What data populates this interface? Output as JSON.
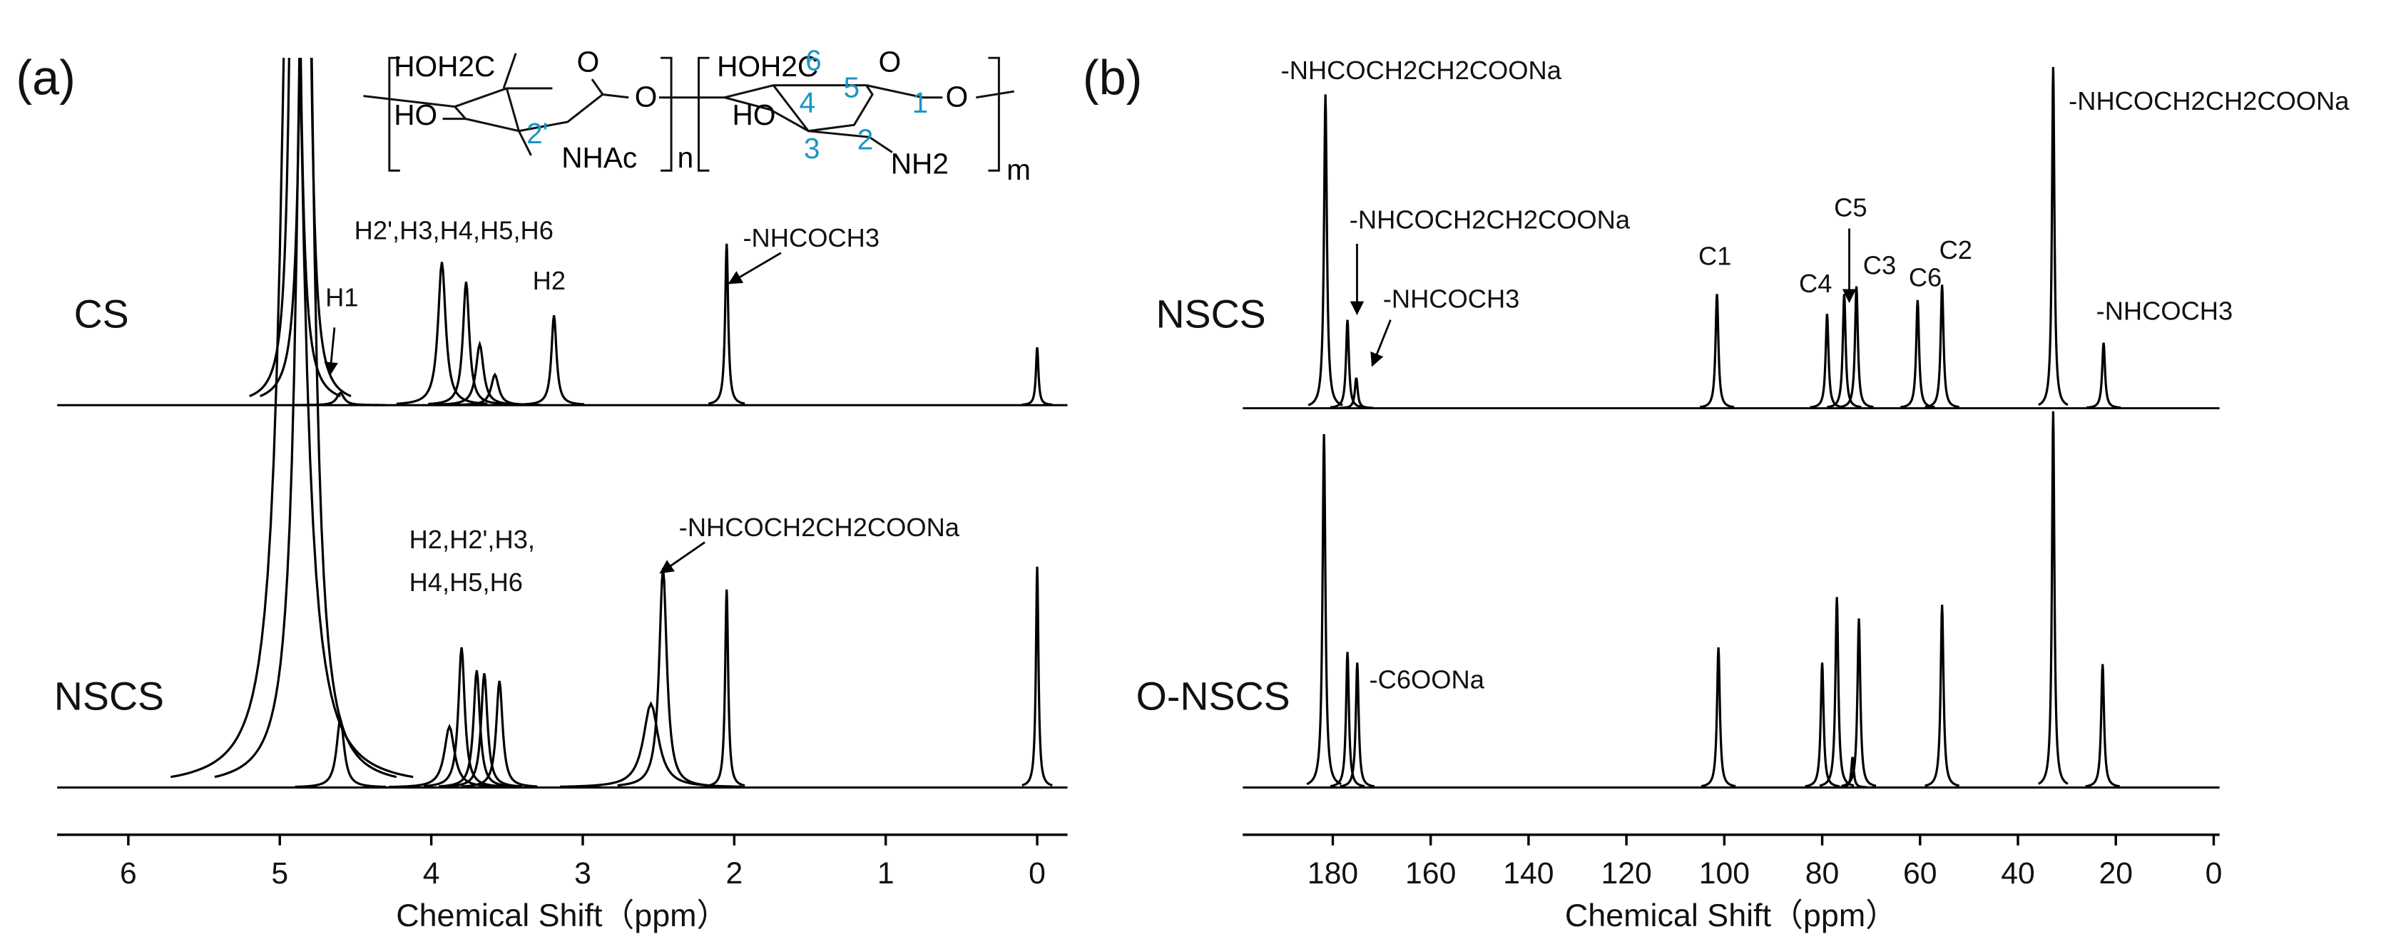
{
  "chart_data": [
    {
      "type": "spectrum",
      "panel_label": "(a)",
      "xlabel": "Chemical Shift（ppm）",
      "xlim": [
        6.47,
        -0.2
      ],
      "xticks": [
        6,
        5,
        4,
        3,
        2,
        1,
        0
      ],
      "series": [
        {
          "name": "CS",
          "color": "#000000",
          "x": [
            4.9,
            4.83,
            4.6,
            3.93,
            3.77,
            3.68,
            3.58,
            3.19,
            2.05,
            0
          ],
          "values": [
            600,
            600,
            8,
            94,
            81,
            40,
            20,
            59,
            106,
            38
          ],
          "linewidths": [
            0.03,
            0.03,
            0.03,
            0.03,
            0.025,
            0.03,
            0.03,
            0.02,
            0.012,
            0.01
          ]
        },
        {
          "name": "NSCS",
          "color": "#000000",
          "x": [
            4.92,
            4.83,
            4.6,
            3.88,
            3.8,
            3.7,
            3.65,
            3.55,
            2.55,
            2.47,
            2.05,
            0
          ],
          "values": [
            700,
            700,
            45,
            40,
            92,
            77,
            75,
            70,
            55,
            144,
            130,
            145
          ],
          "linewidths": [
            0.08,
            0.06,
            0.03,
            0.04,
            0.025,
            0.025,
            0.025,
            0.025,
            0.06,
            0.03,
            0.012,
            0.01
          ]
        }
      ],
      "annotations": [
        "H2',H3,H4,H5,H6",
        "H1",
        "H2",
        "-NHCOCH3",
        "H2,H2',H3,",
        "H4,H5,H6",
        "-NHCOCH2CH2COONa"
      ],
      "structure": [
        {
          "text": "HOH2C",
          "color": "#000000"
        },
        {
          "text": "O",
          "color": "#000000"
        },
        {
          "text": "HO",
          "color": "#000000"
        },
        {
          "text": "2'",
          "color": "#1a96c8"
        },
        {
          "text": "NHAc",
          "color": "#000000"
        },
        {
          "text": "n",
          "color": "#000000"
        },
        {
          "text": "O",
          "color": "#000000"
        },
        {
          "text": "HOH2C",
          "color": "#000000"
        },
        {
          "text": "6",
          "color": "#1a96c8"
        },
        {
          "text": "O",
          "color": "#000000"
        },
        {
          "text": "HO",
          "color": "#000000"
        },
        {
          "text": "4",
          "color": "#1a96c8"
        },
        {
          "text": "5",
          "color": "#1a96c8"
        },
        {
          "text": "1",
          "color": "#1a96c8"
        },
        {
          "text": "3",
          "color": "#1a96c8"
        },
        {
          "text": "2",
          "color": "#1a96c8"
        },
        {
          "text": "NH2",
          "color": "#000000"
        },
        {
          "text": "O",
          "color": "#000000"
        },
        {
          "text": "m",
          "color": "#000000"
        }
      ]
    },
    {
      "type": "spectrum",
      "panel_label": "(b)",
      "xlabel": "Chemical Shift（ppm）",
      "xlim": [
        198.4,
        -1.2
      ],
      "xticks": [
        180,
        160,
        140,
        120,
        100,
        80,
        60,
        40,
        20,
        0
      ],
      "series": [
        {
          "name": "NSCS",
          "color": "#000000",
          "x": [
            181.5,
            177,
            175.2,
            101.5,
            79,
            75.5,
            73,
            60.5,
            55.5,
            32.8,
            22.5
          ],
          "values": [
            206,
            58,
            20,
            75,
            62,
            75,
            80,
            71,
            81,
            224,
            43
          ],
          "linewidths": [
            0.35,
            0.35,
            0.35,
            0.35,
            0.35,
            0.35,
            0.35,
            0.35,
            0.35,
            0.3,
            0.35
          ]
        },
        {
          "name": "O-NSCS",
          "color": "#000000",
          "x": [
            181.8,
            177,
            175,
            101.2,
            80,
            77,
            73.8,
            72.5,
            55.5,
            32.8,
            22.7
          ],
          "values": [
            232,
            89,
            82,
            92,
            82,
            125,
            20,
            111,
            120,
            247,
            81
          ],
          "linewidths": [
            0.35,
            0.35,
            0.35,
            0.35,
            0.35,
            0.35,
            0.3,
            0.35,
            0.35,
            0.3,
            0.35
          ]
        }
      ],
      "annotations": [
        "-NHCOCH2CH2COONa",
        "-NHCOCH2CH2COONa",
        "-NHCOCH3",
        "C1",
        "C4",
        "C5",
        "C3",
        "C6",
        "C2",
        "-NHCOCH2CH2COONa",
        "-NHCOCH3",
        "-C6OONa"
      ]
    }
  ]
}
